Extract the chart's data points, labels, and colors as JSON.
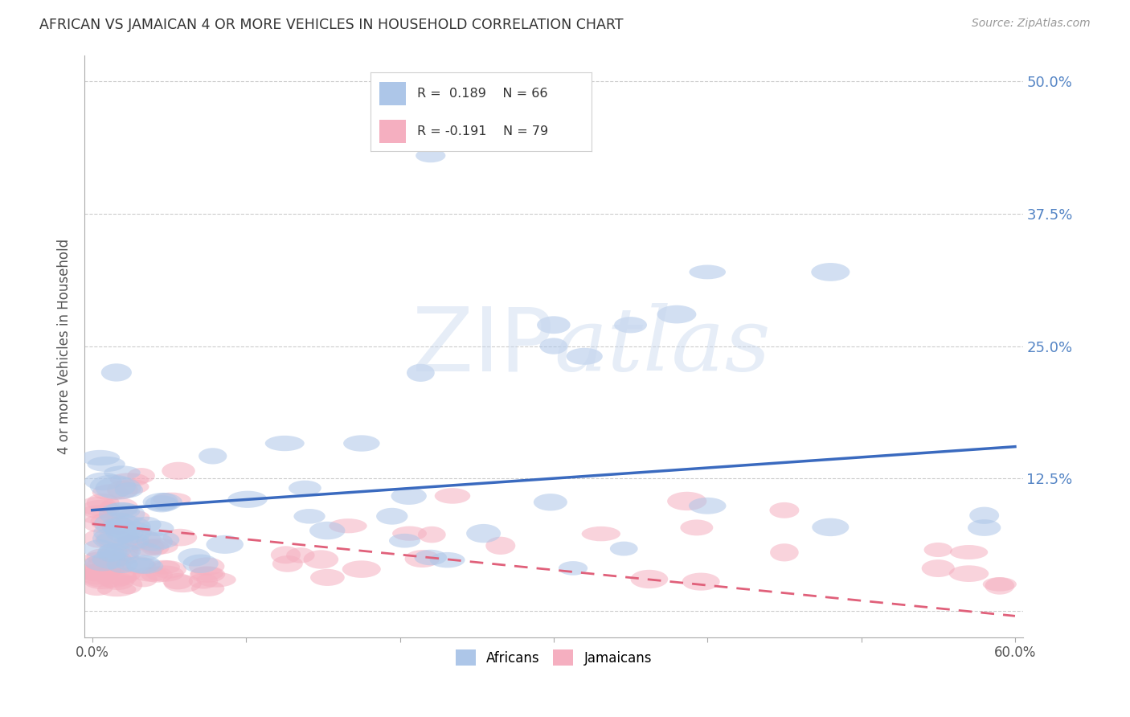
{
  "title": "AFRICAN VS JAMAICAN 4 OR MORE VEHICLES IN HOUSEHOLD CORRELATION CHART",
  "source": "Source: ZipAtlas.com",
  "ylabel": "4 or more Vehicles in Household",
  "xlim": [
    -0.005,
    0.605
  ],
  "ylim": [
    -0.025,
    0.525
  ],
  "african_color": "#adc6e8",
  "jamaican_color": "#f5afc0",
  "african_line_color": "#3a6abf",
  "jamaican_line_color": "#e0607a",
  "african_R": 0.189,
  "jamaican_R": -0.191,
  "african_N": 66,
  "jamaican_N": 79,
  "watermark": "ZIPatlas",
  "background_color": "#ffffff",
  "grid_color": "#cccccc",
  "title_color": "#444444",
  "af_trend_start_y": 0.095,
  "af_trend_end_y": 0.155,
  "ja_trend_start_y": 0.082,
  "ja_trend_end_y": -0.005
}
